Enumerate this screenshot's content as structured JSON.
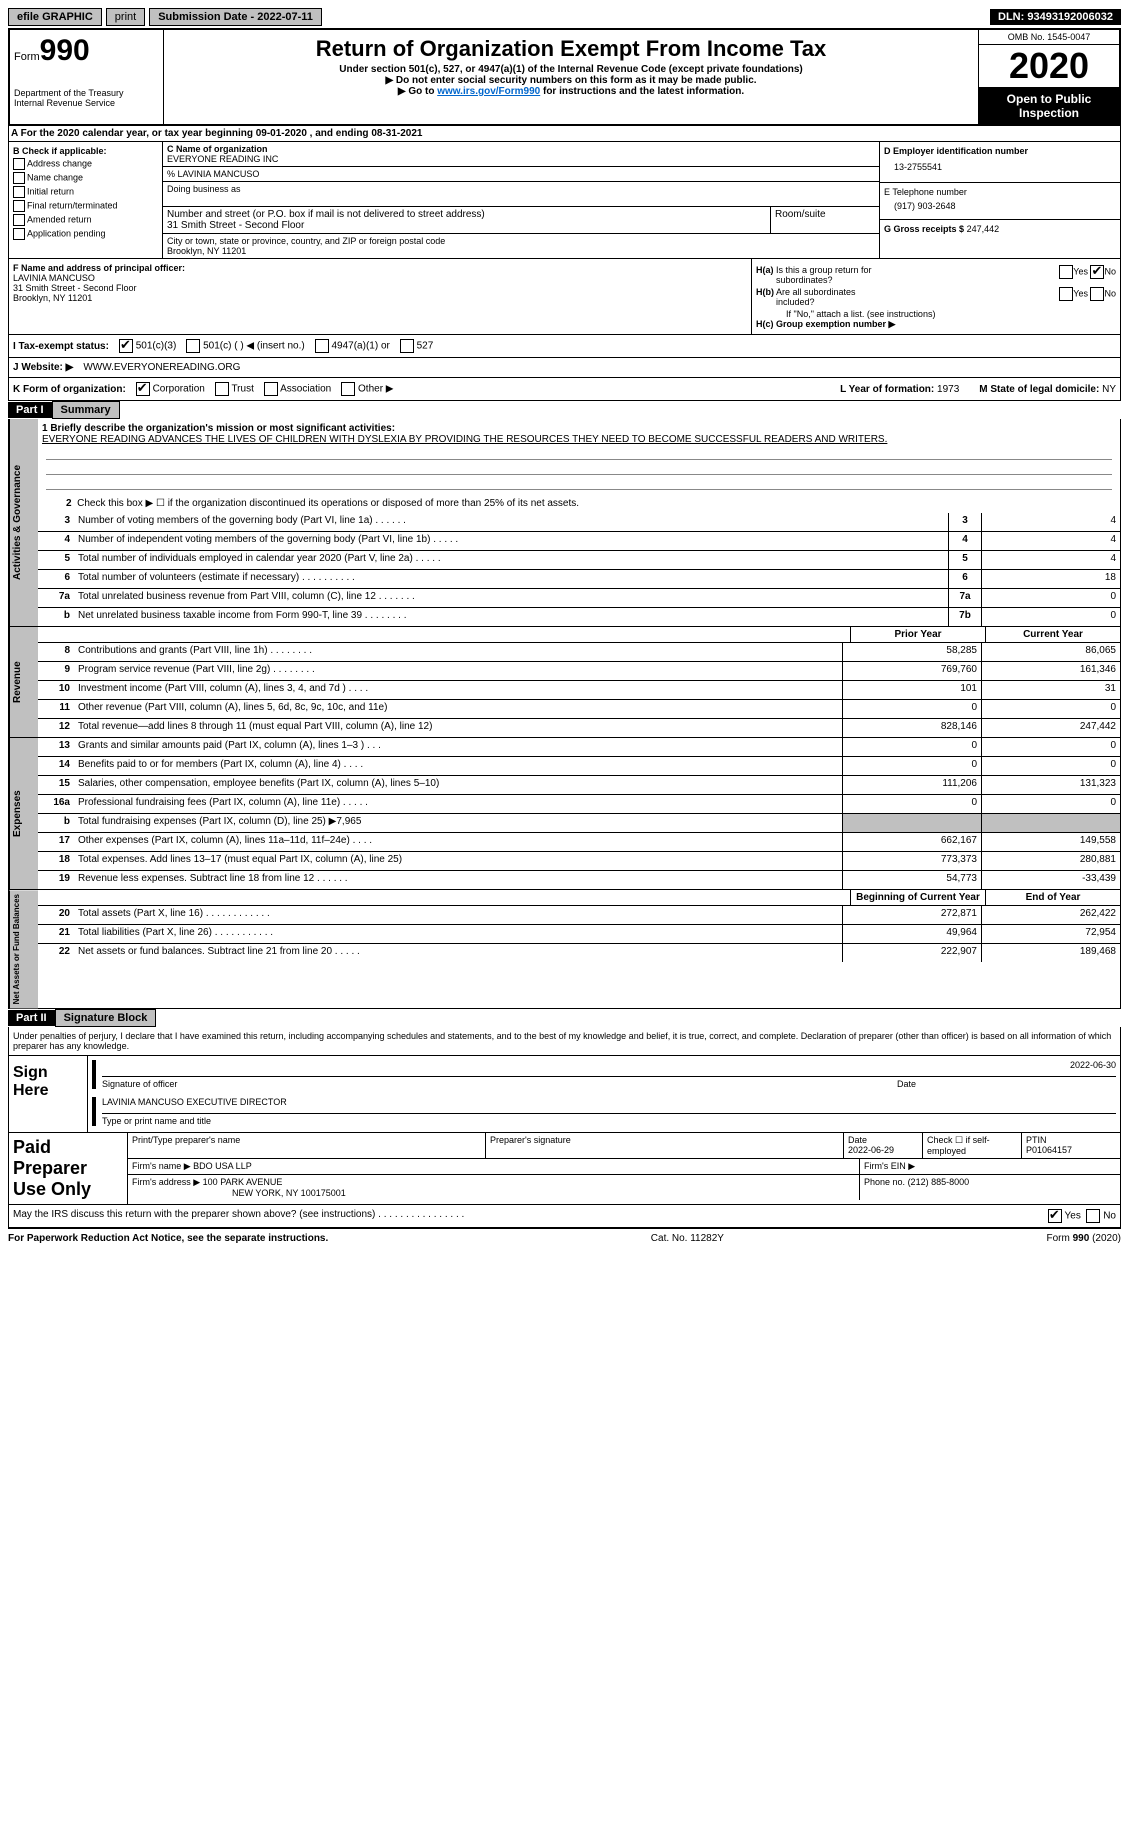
{
  "top_bar": {
    "efile_label": "efile GRAPHIC",
    "print": "print",
    "submission": "Submission Date - 2022-07-11",
    "dln": "DLN: 93493192006032"
  },
  "header": {
    "form_label": "Form",
    "form_num": "990",
    "dept1": "Department of the Treasury",
    "dept2": "Internal Revenue Service",
    "title": "Return of Organization Exempt From Income Tax",
    "subtitle": "Under section 501(c), 527, or 4947(a)(1) of the Internal Revenue Code (except private foundations)",
    "note1": "▶ Do not enter social security numbers on this form as it may be made public.",
    "note2_pre": "▶ Go to ",
    "note2_link": "www.irs.gov/Form990",
    "note2_post": " for instructions and the latest information.",
    "omb": "OMB No. 1545-0047",
    "year": "2020",
    "open_public": "Open to Public Inspection"
  },
  "row_a": "A For the 2020 calendar year, or tax year beginning 09-01-2020   , and ending 08-31-2021",
  "section_b": {
    "b_label": "B Check if applicable:",
    "checks": [
      "Address change",
      "Name change",
      "Initial return",
      "Final return/terminated",
      "Amended return",
      "Application pending"
    ],
    "c_label": "C Name of organization",
    "org_name": "EVERYONE READING INC",
    "care_of": "% LAVINIA MANCUSO",
    "dba_label": "Doing business as",
    "addr_label": "Number and street (or P.O. box if mail is not delivered to street address)",
    "room_label": "Room/suite",
    "addr": "31 Smith Street - Second Floor",
    "city_label": "City or town, state or province, country, and ZIP or foreign postal code",
    "city": "Brooklyn, NY  11201",
    "d_label": "D Employer identification number",
    "ein": "13-2755541",
    "e_label": "E Telephone number",
    "phone": "(917) 903-2648",
    "g_label": "G Gross receipts $",
    "gross": "247,442"
  },
  "section_fgh": {
    "f_label": "F Name and address of principal officer:",
    "officer_name": "LAVINIA MANCUSO",
    "officer_addr1": "31 Smith Street - Second Floor",
    "officer_addr2": "Brooklyn, NY  11201",
    "ha_label": "H(a)  Is this a group return for subordinates?",
    "hb_label": "H(b)  Are all subordinates included?",
    "h_note": "If \"No,\" attach a list. (see instructions)",
    "hc_label": "H(c)  Group exemption number ▶",
    "yes": "Yes",
    "no": "No"
  },
  "row_i": {
    "label": "I  Tax-exempt status:",
    "opt1": "501(c)(3)",
    "opt2": "501(c) (  ) ◀ (insert no.)",
    "opt3": "4947(a)(1) or",
    "opt4": "527"
  },
  "row_j": {
    "label": "J  Website: ▶",
    "value": "WWW.EVERYONEREADING.ORG"
  },
  "row_k": {
    "label": "K Form of organization:",
    "corp": "Corporation",
    "trust": "Trust",
    "assoc": "Association",
    "other": "Other ▶",
    "l_label": "L Year of formation:",
    "l_val": "1973",
    "m_label": "M State of legal domicile:",
    "m_val": "NY"
  },
  "part1": {
    "header": "Part I",
    "title": "Summary",
    "line1_label": "1  Briefly describe the organization's mission or most significant activities:",
    "mission": "EVERYONE READING ADVANCES THE LIVES OF CHILDREN WITH DYSLEXIA BY PROVIDING THE RESOURCES THEY NEED TO BECOME SUCCESSFUL READERS AND WRITERS.",
    "line2": "Check this box ▶ ☐  if the organization discontinued its operations or disposed of more than 25% of its net assets.",
    "governance_label": "Activities & Governance",
    "revenue_label": "Revenue",
    "expenses_label": "Expenses",
    "netassets_label": "Net Assets or Fund Balances",
    "prior_year": "Prior Year",
    "current_year": "Current Year",
    "begin_year": "Beginning of Current Year",
    "end_year": "End of Year",
    "lines_gov": [
      {
        "n": "3",
        "t": "Number of voting members of the governing body (Part VI, line 1a)   .    .    .    .    .    .",
        "box": "3",
        "v": "4"
      },
      {
        "n": "4",
        "t": "Number of independent voting members of the governing body (Part VI, line 1b)   .    .    .    .    .",
        "box": "4",
        "v": "4"
      },
      {
        "n": "5",
        "t": "Total number of individuals employed in calendar year 2020 (Part V, line 2a)   .    .    .    .    .",
        "box": "5",
        "v": "4"
      },
      {
        "n": "6",
        "t": "Total number of volunteers (estimate if necessary)   .    .    .    .    .    .    .    .    .    .",
        "box": "6",
        "v": "18"
      },
      {
        "n": "7a",
        "t": "Total unrelated business revenue from Part VIII, column (C), line 12   .    .    .    .    .    .    .",
        "box": "7a",
        "v": "0"
      },
      {
        "n": "b",
        "t": "Net unrelated business taxable income from Form 990-T, line 39   .    .    .    .    .    .    .    .",
        "box": "7b",
        "v": "0"
      }
    ],
    "lines_rev": [
      {
        "n": "8",
        "t": "Contributions and grants (Part VIII, line 1h)   .    .    .    .    .    .    .    .",
        "p": "58,285",
        "c": "86,065"
      },
      {
        "n": "9",
        "t": "Program service revenue (Part VIII, line 2g)   .    .    .    .    .    .    .    .",
        "p": "769,760",
        "c": "161,346"
      },
      {
        "n": "10",
        "t": "Investment income (Part VIII, column (A), lines 3, 4, and 7d )   .    .    .    .",
        "p": "101",
        "c": "31"
      },
      {
        "n": "11",
        "t": "Other revenue (Part VIII, column (A), lines 5, 6d, 8c, 9c, 10c, and 11e)",
        "p": "0",
        "c": "0"
      },
      {
        "n": "12",
        "t": "Total revenue—add lines 8 through 11 (must equal Part VIII, column (A), line 12)",
        "p": "828,146",
        "c": "247,442"
      }
    ],
    "lines_exp": [
      {
        "n": "13",
        "t": "Grants and similar amounts paid (Part IX, column (A), lines 1–3 )   .    .    .",
        "p": "0",
        "c": "0"
      },
      {
        "n": "14",
        "t": "Benefits paid to or for members (Part IX, column (A), line 4)   .    .    .    .",
        "p": "0",
        "c": "0"
      },
      {
        "n": "15",
        "t": "Salaries, other compensation, employee benefits (Part IX, column (A), lines 5–10)",
        "p": "111,206",
        "c": "131,323"
      },
      {
        "n": "16a",
        "t": "Professional fundraising fees (Part IX, column (A), line 11e)   .    .    .    .    .",
        "p": "0",
        "c": "0"
      },
      {
        "n": "b",
        "t": "Total fundraising expenses (Part IX, column (D), line 25) ▶7,965",
        "p": "",
        "c": "",
        "gray": true
      },
      {
        "n": "17",
        "t": "Other expenses (Part IX, column (A), lines 11a–11d, 11f–24e)   .    .    .    .",
        "p": "662,167",
        "c": "149,558"
      },
      {
        "n": "18",
        "t": "Total expenses. Add lines 13–17 (must equal Part IX, column (A), line 25)",
        "p": "773,373",
        "c": "280,881"
      },
      {
        "n": "19",
        "t": "Revenue less expenses. Subtract line 18 from line 12   .    .    .    .    .    .",
        "p": "54,773",
        "c": "-33,439"
      }
    ],
    "lines_net": [
      {
        "n": "20",
        "t": "Total assets (Part X, line 16)   .    .    .    .    .    .    .    .    .    .    .    .",
        "p": "272,871",
        "c": "262,422"
      },
      {
        "n": "21",
        "t": "Total liabilities (Part X, line 26)   .    .    .    .    .    .    .    .    .    .    .",
        "p": "49,964",
        "c": "72,954"
      },
      {
        "n": "22",
        "t": "Net assets or fund balances. Subtract line 21 from line 20   .    .    .    .    .",
        "p": "222,907",
        "c": "189,468"
      }
    ]
  },
  "part2": {
    "header": "Part II",
    "title": "Signature Block",
    "declare": "Under penalties of perjury, I declare that I have examined this return, including accompanying schedules and statements, and to the best of my knowledge and belief, it is true, correct, and complete. Declaration of preparer (other than officer) is based on all information of which preparer has any knowledge.",
    "sign_here": "Sign Here",
    "sig_officer": "Signature of officer",
    "sig_date": "2022-06-30",
    "date_label": "Date",
    "officer_name": "LAVINIA MANCUSO  EXECUTIVE DIRECTOR",
    "type_name": "Type or print name and title",
    "paid_prep": "Paid Preparer Use Only",
    "print_prep": "Print/Type preparer's name",
    "prep_sig": "Preparer's signature",
    "prep_date_label": "Date",
    "prep_date": "2022-06-29",
    "check_self": "Check ☐ if self-employed",
    "ptin_label": "PTIN",
    "ptin": "P01064157",
    "firm_name_label": "Firm's name   ▶",
    "firm_name": "BDO USA LLP",
    "firm_ein_label": "Firm's EIN ▶",
    "firm_addr_label": "Firm's address ▶",
    "firm_addr1": "100 PARK AVENUE",
    "firm_addr2": "NEW YORK, NY  100175001",
    "phone_label": "Phone no.",
    "phone": "(212) 885-8000",
    "discuss": "May the IRS discuss this return with the preparer shown above? (see instructions)   .    .    .    .    .    .    .    .    .    .    .    .    .    .    .    .",
    "yes": "Yes",
    "no": "No"
  },
  "footer": {
    "left": "For Paperwork Reduction Act Notice, see the separate instructions.",
    "mid": "Cat. No. 11282Y",
    "right": "Form 990 (2020)"
  }
}
